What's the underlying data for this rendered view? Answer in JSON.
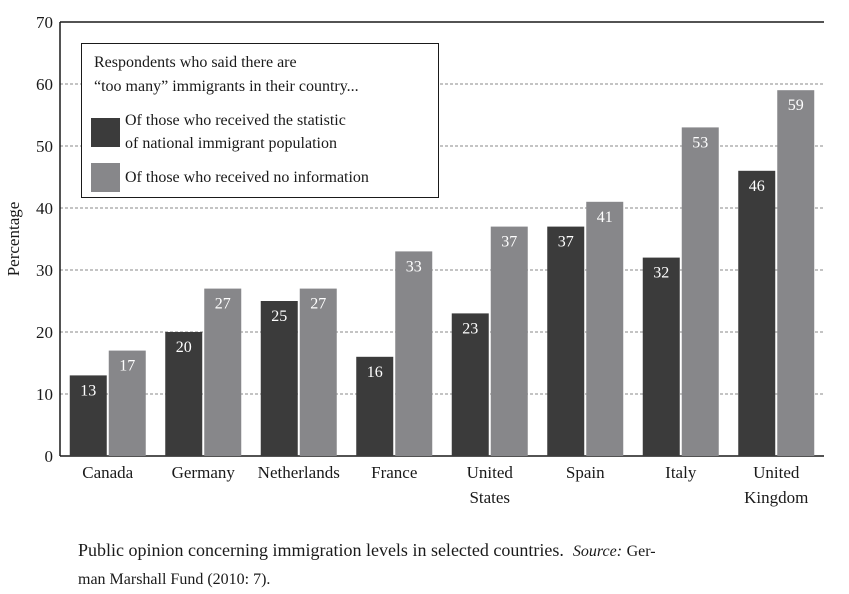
{
  "chart_data": {
    "type": "bar",
    "ylabel": "Percentage",
    "ylim": [
      0,
      70
    ],
    "yticks": [
      "0",
      "10",
      "20",
      "30",
      "40",
      "50",
      "60",
      "70"
    ],
    "grid": "horizontal dashed",
    "categories": [
      [
        "Canada"
      ],
      [
        "Germany"
      ],
      [
        "Netherlands"
      ],
      [
        "France"
      ],
      [
        "United",
        "States"
      ],
      [
        "Spain"
      ],
      [
        "Italy"
      ],
      [
        "United",
        "Kingdom"
      ]
    ],
    "series": [
      {
        "name": "Of those who received the statistic of national immigrant population",
        "color": "#3b3b3b",
        "values": [
          13,
          20,
          25,
          16,
          23,
          37,
          32,
          46
        ]
      },
      {
        "name": "Of those who received no information",
        "color": "#87878a",
        "values": [
          17,
          27,
          27,
          33,
          37,
          41,
          53,
          59
        ]
      }
    ],
    "legend": {
      "placement": "top-left",
      "title_lines": [
        "Respondents who said there are",
        "“too many” immigrants in their country..."
      ],
      "item1_lines": [
        "Of those who received the statistic",
        "of national immigrant population"
      ],
      "item2_lines": [
        "Of those who received no information"
      ]
    }
  },
  "caption": {
    "main": "Public opinion concerning immigration levels in selected countries.",
    "source_label": "Source:",
    "source_line1": "Ger-",
    "source_line2": "man Marshall Fund (2010: 7)."
  }
}
